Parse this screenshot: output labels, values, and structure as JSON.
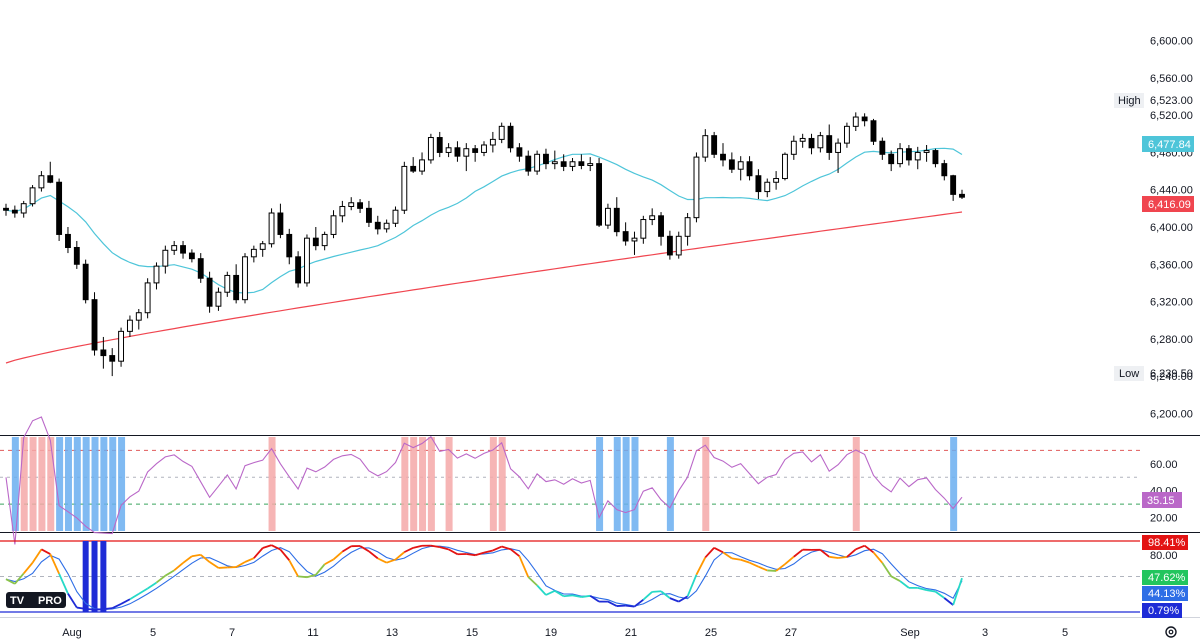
{
  "chart_data": [
    {
      "type": "candlestick",
      "panel": "price",
      "x_labels": [
        "Aug",
        "5",
        "7",
        "11",
        "13",
        "15",
        "19",
        "21",
        "25",
        "27",
        "Sep",
        "3",
        "5"
      ],
      "y_ticks": [
        6200,
        6240,
        6280,
        6320,
        6360,
        6400,
        6440,
        6480,
        6520,
        6560,
        6600
      ],
      "y_tick_labels": [
        "6,200.00",
        "6,240.00",
        "6,280.00",
        "6,320.00",
        "6,360.00",
        "6,400.00",
        "6,440.00",
        "6,480.00",
        "6,520.00",
        "6,560.00",
        "6,600.00"
      ],
      "ylim": [
        6180,
        6635
      ],
      "high_label": "High",
      "high_value": "6,523.00",
      "low_label": "Low",
      "low_value": "6,239.50",
      "last_values": [
        {
          "label": "6,477.84",
          "value": 6477.84,
          "color": "#4ec5d9"
        },
        {
          "label": "6,416.09",
          "value": 6416.09,
          "color": "#f0454f"
        }
      ],
      "candles": [
        [
          6420,
          6425,
          6412,
          6418
        ],
        [
          6418,
          6423,
          6410,
          6415
        ],
        [
          6415,
          6428,
          6410,
          6425
        ],
        [
          6425,
          6445,
          6422,
          6442
        ],
        [
          6442,
          6460,
          6438,
          6455
        ],
        [
          6455,
          6470,
          6447,
          6448
        ],
        [
          6448,
          6452,
          6385,
          6392
        ],
        [
          6392,
          6400,
          6372,
          6378
        ],
        [
          6378,
          6385,
          6355,
          6360
        ],
        [
          6360,
          6365,
          6318,
          6322
        ],
        [
          6322,
          6330,
          6262,
          6268
        ],
        [
          6268,
          6282,
          6248,
          6262
        ],
        [
          6262,
          6270,
          6240,
          6256
        ],
        [
          6256,
          6292,
          6250,
          6288
        ],
        [
          6288,
          6305,
          6282,
          6300
        ],
        [
          6300,
          6312,
          6290,
          6308
        ],
        [
          6308,
          6345,
          6302,
          6340
        ],
        [
          6340,
          6362,
          6333,
          6358
        ],
        [
          6358,
          6380,
          6350,
          6375
        ],
        [
          6375,
          6385,
          6370,
          6380
        ],
        [
          6380,
          6385,
          6366,
          6372
        ],
        [
          6372,
          6376,
          6362,
          6366
        ],
        [
          6366,
          6372,
          6340,
          6345
        ],
        [
          6345,
          6352,
          6308,
          6315
        ],
        [
          6315,
          6335,
          6310,
          6330
        ],
        [
          6330,
          6352,
          6325,
          6348
        ],
        [
          6348,
          6360,
          6318,
          6322
        ],
        [
          6322,
          6372,
          6318,
          6368
        ],
        [
          6368,
          6380,
          6362,
          6376
        ],
        [
          6376,
          6385,
          6368,
          6382
        ],
        [
          6382,
          6420,
          6378,
          6415
        ],
        [
          6415,
          6425,
          6388,
          6392
        ],
        [
          6392,
          6398,
          6360,
          6368
        ],
        [
          6368,
          6374,
          6335,
          6340
        ],
        [
          6340,
          6392,
          6336,
          6388
        ],
        [
          6388,
          6400,
          6375,
          6380
        ],
        [
          6380,
          6395,
          6375,
          6392
        ],
        [
          6392,
          6418,
          6388,
          6412
        ],
        [
          6412,
          6428,
          6405,
          6422
        ],
        [
          6422,
          6432,
          6418,
          6426
        ],
        [
          6426,
          6430,
          6415,
          6420
        ],
        [
          6420,
          6428,
          6400,
          6405
        ],
        [
          6405,
          6412,
          6392,
          6398
        ],
        [
          6398,
          6408,
          6394,
          6404
        ],
        [
          6404,
          6422,
          6400,
          6418
        ],
        [
          6418,
          6470,
          6414,
          6465
        ],
        [
          6465,
          6475,
          6458,
          6460
        ],
        [
          6460,
          6480,
          6456,
          6472
        ],
        [
          6472,
          6500,
          6468,
          6496
        ],
        [
          6496,
          6502,
          6475,
          6480
        ],
        [
          6480,
          6490,
          6475,
          6485
        ],
        [
          6485,
          6492,
          6470,
          6476
        ],
        [
          6476,
          6490,
          6460,
          6484
        ],
        [
          6484,
          6488,
          6470,
          6480
        ],
        [
          6480,
          6492,
          6476,
          6488
        ],
        [
          6488,
          6502,
          6480,
          6494
        ],
        [
          6494,
          6512,
          6490,
          6508
        ],
        [
          6508,
          6512,
          6480,
          6485
        ],
        [
          6485,
          6490,
          6470,
          6476
        ],
        [
          6476,
          6482,
          6455,
          6460
        ],
        [
          6460,
          6482,
          6456,
          6478
        ],
        [
          6478,
          6484,
          6462,
          6468
        ],
        [
          6468,
          6482,
          6462,
          6470
        ],
        [
          6470,
          6478,
          6460,
          6465
        ],
        [
          6465,
          6474,
          6460,
          6470
        ],
        [
          6470,
          6478,
          6462,
          6466
        ],
        [
          6466,
          6475,
          6460,
          6468
        ],
        [
          6468,
          6474,
          6400,
          6402
        ],
        [
          6402,
          6425,
          6398,
          6420
        ],
        [
          6420,
          6432,
          6390,
          6395
        ],
        [
          6395,
          6405,
          6380,
          6385
        ],
        [
          6385,
          6395,
          6370,
          6388
        ],
        [
          6388,
          6412,
          6382,
          6408
        ],
        [
          6408,
          6420,
          6402,
          6412
        ],
        [
          6412,
          6416,
          6380,
          6390
        ],
        [
          6390,
          6396,
          6365,
          6370
        ],
        [
          6370,
          6395,
          6366,
          6390
        ],
        [
          6390,
          6415,
          6380,
          6410
        ],
        [
          6410,
          6480,
          6405,
          6475
        ],
        [
          6475,
          6505,
          6470,
          6498
        ],
        [
          6498,
          6502,
          6474,
          6478
        ],
        [
          6478,
          6490,
          6465,
          6472
        ],
        [
          6472,
          6480,
          6458,
          6462
        ],
        [
          6462,
          6476,
          6450,
          6470
        ],
        [
          6470,
          6476,
          6450,
          6455
        ],
        [
          6455,
          6462,
          6430,
          6438
        ],
        [
          6438,
          6452,
          6432,
          6448
        ],
        [
          6448,
          6460,
          6440,
          6452
        ],
        [
          6452,
          6480,
          6450,
          6478
        ],
        [
          6478,
          6498,
          6472,
          6492
        ],
        [
          6492,
          6500,
          6485,
          6495
        ],
        [
          6495,
          6500,
          6478,
          6485
        ],
        [
          6485,
          6502,
          6480,
          6498
        ],
        [
          6498,
          6510,
          6472,
          6480
        ],
        [
          6480,
          6495,
          6458,
          6490
        ],
        [
          6490,
          6512,
          6485,
          6508
        ],
        [
          6508,
          6523,
          6503,
          6518
        ],
        [
          6518,
          6522,
          6508,
          6514
        ],
        [
          6514,
          6516,
          6488,
          6492
        ],
        [
          6492,
          6496,
          6472,
          6478
        ],
        [
          6478,
          6482,
          6460,
          6468
        ],
        [
          6468,
          6490,
          6464,
          6484
        ],
        [
          6484,
          6488,
          6466,
          6472
        ],
        [
          6472,
          6486,
          6462,
          6480
        ],
        [
          6480,
          6488,
          6470,
          6482
        ],
        [
          6482,
          6484,
          6464,
          6468
        ],
        [
          6468,
          6472,
          6450,
          6455
        ],
        [
          6455,
          6456,
          6428,
          6435
        ],
        [
          6435,
          6440,
          6430,
          6432
        ]
      ]
    },
    {
      "type": "line",
      "panel": "rsi",
      "y_tick_labels": [
        "60.00",
        "40.00",
        "20.00"
      ],
      "last_value": "35.15",
      "last_color": "#ba68c8"
    },
    {
      "type": "line",
      "panel": "stochastic",
      "y_tick_labels": [
        "80.00"
      ],
      "badges": [
        {
          "label": "98.41%",
          "color": "#e31313"
        },
        {
          "label": "47.62%",
          "color": "#22c55e"
        },
        {
          "label": "44.13%",
          "color": "#2e6ee6"
        },
        {
          "label": "0.79%",
          "color": "#1e2bd6"
        }
      ]
    }
  ],
  "logo_text": "PRO",
  "colors": {
    "candle_up": "#ffffff",
    "candle_down": "#000000",
    "sma_fast": "#4ec5d9",
    "sma_slow": "#f0454f",
    "rsi_line": "#ba68c8",
    "overbought_band": "#f4a8a8",
    "oversold_band": "#6aaef0"
  },
  "icons": {
    "settings": "gear-icon",
    "logo": "tradingview-logo-icon"
  }
}
